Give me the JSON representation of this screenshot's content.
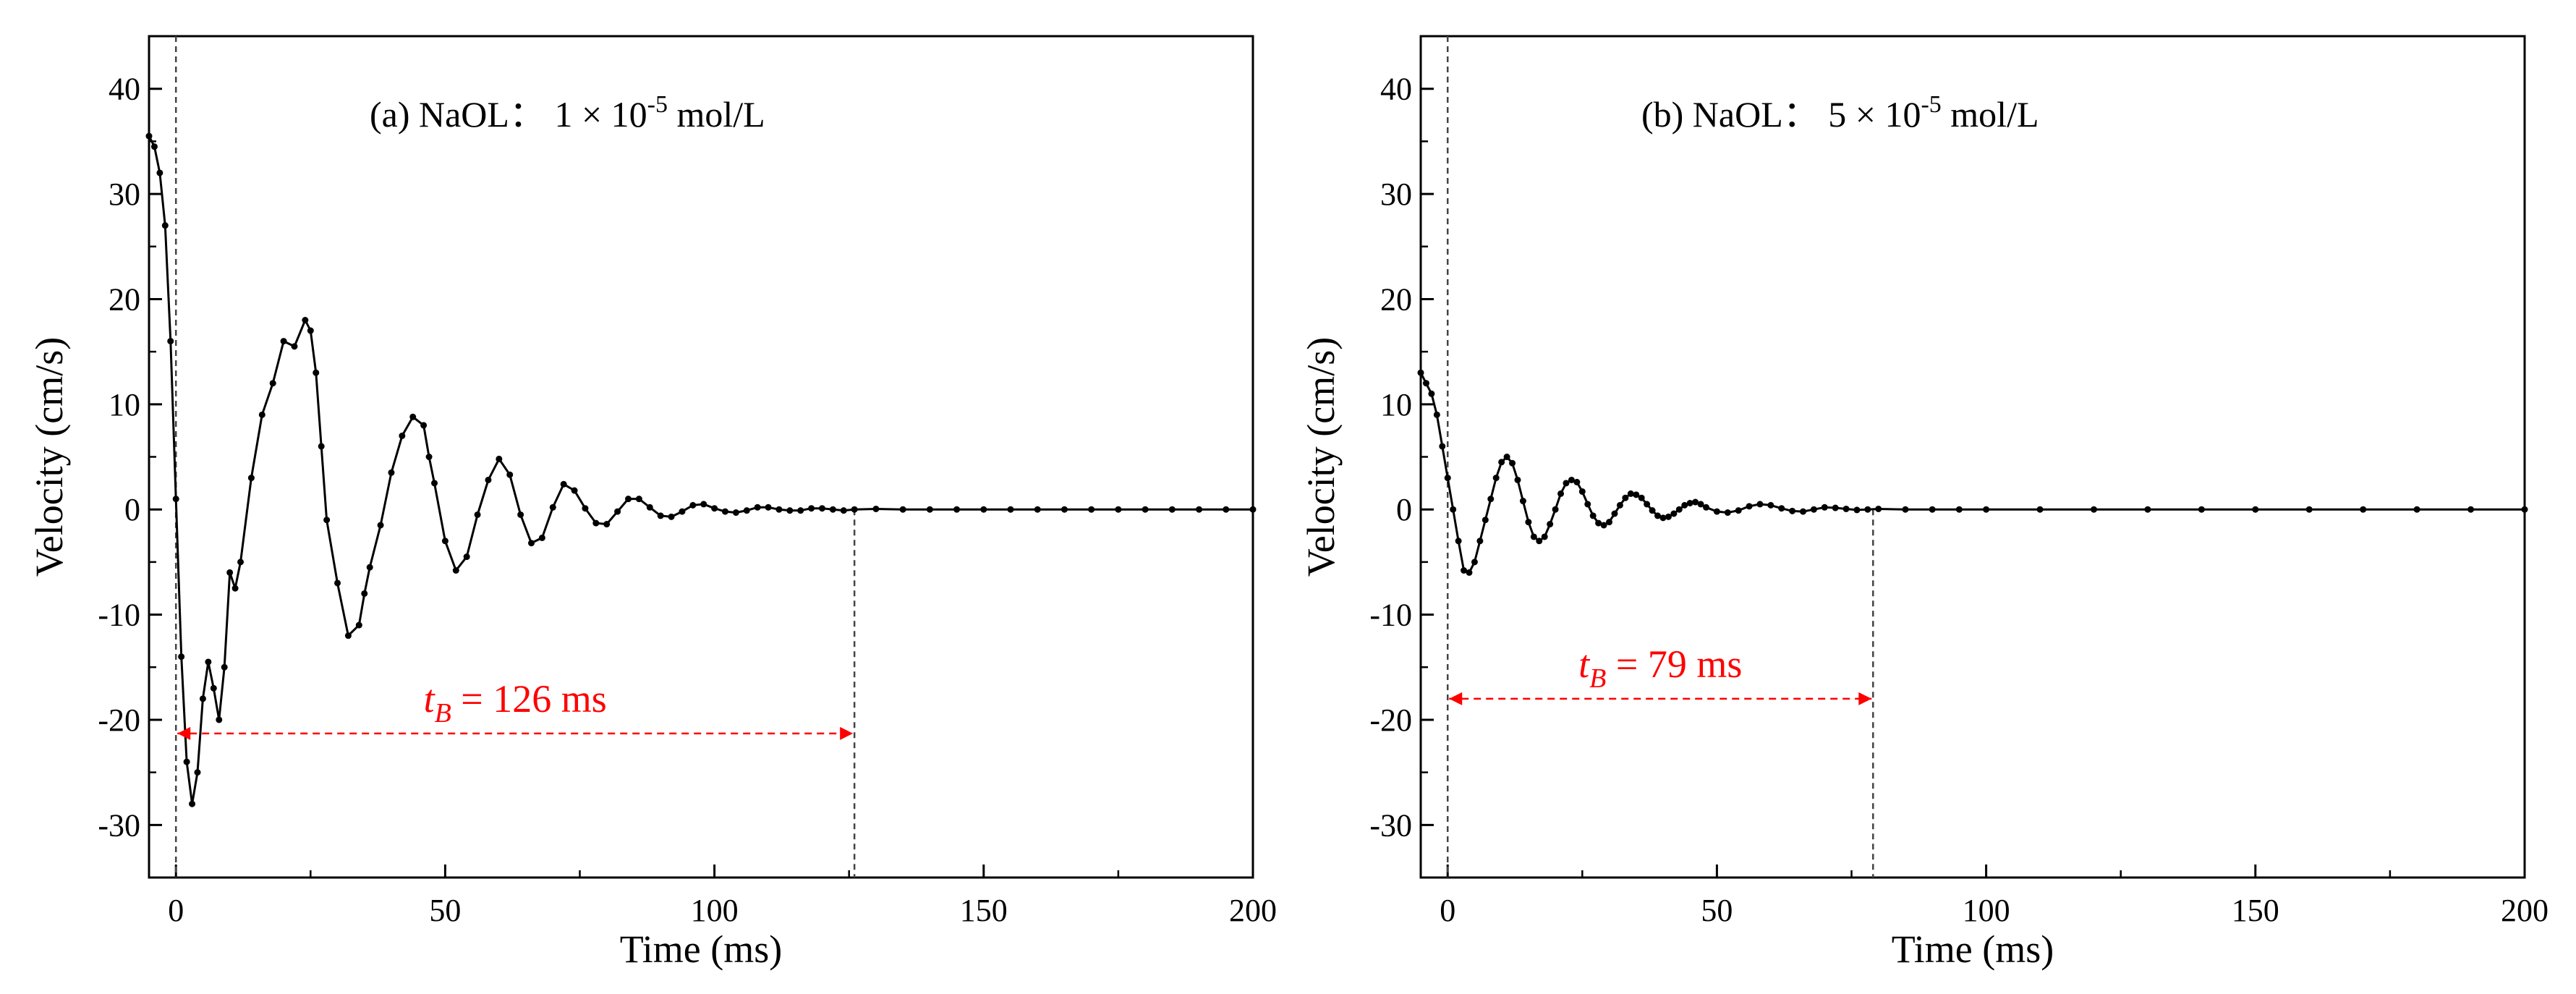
{
  "chart_data": [
    {
      "type": "line",
      "panel_label": "(a) NaOL： 1 × 10",
      "panel_exp": "-5",
      "panel_unit": " mol/L",
      "xlabel": "Time (ms)",
      "ylabel": "Velocity (cm/s)",
      "xlim": [
        -5,
        200
      ],
      "ylim": [
        -35,
        45
      ],
      "xticks": [
        0,
        50,
        100,
        150,
        200
      ],
      "xtick_labels": [
        "0",
        "50",
        "100",
        "150",
        "200"
      ],
      "yticks": [
        -30,
        -20,
        -10,
        0,
        10,
        20,
        30,
        40
      ],
      "ytick_labels": [
        "-30",
        "-20",
        "-10",
        "0",
        "10",
        "20",
        "30",
        "40"
      ],
      "grid": false,
      "annotation": {
        "prefix": "t",
        "subscript": "B",
        "suffix": " = 126 ms",
        "from": 0,
        "to": 126,
        "y": -21.3
      },
      "vlines": [
        0,
        126
      ],
      "series": [
        {
          "name": "velocity",
          "x": [
            -5,
            -4,
            -3,
            -2,
            -1,
            0,
            1,
            2,
            3,
            4,
            5,
            6,
            7,
            8,
            9,
            10,
            11,
            12,
            14,
            16,
            18,
            20,
            22,
            24,
            25,
            26,
            27,
            28,
            30,
            32,
            34,
            35,
            36,
            38,
            40,
            42,
            44,
            46,
            47,
            48,
            50,
            52,
            54,
            56,
            58,
            60,
            62,
            64,
            66,
            68,
            70,
            72,
            74,
            76,
            78,
            80,
            82,
            84,
            86,
            88,
            90,
            92,
            94,
            96,
            98,
            100,
            102,
            104,
            106,
            108,
            110,
            112,
            114,
            116,
            118,
            120,
            122,
            124,
            126,
            130,
            135,
            140,
            145,
            150,
            155,
            160,
            165,
            170,
            175,
            180,
            185,
            190,
            195,
            200
          ],
          "y": [
            35.5,
            34.5,
            32,
            27,
            16,
            1,
            -14,
            -24,
            -28,
            -25,
            -18,
            -14.5,
            -17,
            -20,
            -15,
            -6,
            -7.5,
            -5,
            3,
            9,
            12,
            16,
            15.5,
            18,
            17,
            13,
            6,
            -1,
            -7,
            -12,
            -11,
            -8,
            -5.5,
            -1.5,
            3.5,
            7,
            8.8,
            8,
            5,
            2.5,
            -3,
            -5.8,
            -4.5,
            -0.5,
            2.8,
            4.8,
            3.3,
            -0.5,
            -3.2,
            -2.7,
            0.2,
            2.4,
            1.8,
            0.1,
            -1.3,
            -1.4,
            -0.2,
            1,
            1,
            0.2,
            -0.6,
            -0.7,
            -0.2,
            0.4,
            0.5,
            0.1,
            -0.2,
            -0.3,
            -0.1,
            0.2,
            0.2,
            0,
            -0.1,
            -0.1,
            0.1,
            0.1,
            0,
            -0.1,
            0,
            0.05,
            0,
            0,
            0,
            0,
            0,
            0,
            0,
            0,
            0,
            0,
            0,
            0,
            0,
            0
          ]
        }
      ]
    },
    {
      "type": "line",
      "panel_label": "(b) NaOL： 5 × 10",
      "panel_exp": "-5",
      "panel_unit": " mol/L",
      "xlabel": "Time (ms)",
      "ylabel": "Velocity (cm/s)",
      "xlim": [
        -5,
        200
      ],
      "ylim": [
        -35,
        45
      ],
      "xticks": [
        0,
        50,
        100,
        150,
        200
      ],
      "xtick_labels": [
        "0",
        "50",
        "100",
        "150",
        "200"
      ],
      "yticks": [
        -30,
        -20,
        -10,
        0,
        10,
        20,
        30,
        40
      ],
      "ytick_labels": [
        "-30",
        "-20",
        "-10",
        "0",
        "10",
        "20",
        "30",
        "40"
      ],
      "grid": false,
      "annotation": {
        "prefix": "t",
        "subscript": "B",
        "suffix": " = 79 ms",
        "from": 0,
        "to": 79,
        "y": -18
      },
      "vlines": [
        0,
        79
      ],
      "series": [
        {
          "name": "velocity",
          "x": [
            -5,
            -4,
            -3,
            -2,
            -1,
            0,
            1,
            2,
            3,
            4,
            5,
            6,
            7,
            8,
            9,
            10,
            11,
            12,
            13,
            14,
            15,
            16,
            17,
            18,
            19,
            20,
            21,
            22,
            23,
            24,
            25,
            26,
            27,
            28,
            29,
            30,
            31,
            32,
            33,
            34,
            35,
            36,
            37,
            38,
            39,
            40,
            41,
            42,
            43,
            44,
            45,
            46,
            47,
            48,
            50,
            52,
            54,
            56,
            58,
            60,
            62,
            64,
            66,
            68,
            70,
            72,
            74,
            76,
            78,
            80,
            85,
            90,
            95,
            100,
            110,
            120,
            130,
            140,
            150,
            160,
            170,
            180,
            190,
            200
          ],
          "y": [
            13,
            12,
            11,
            9,
            6,
            3,
            0,
            -3,
            -5.8,
            -6,
            -5,
            -3,
            -1,
            1,
            3,
            4.5,
            5,
            4.4,
            2.8,
            0.8,
            -1.2,
            -2.6,
            -3,
            -2.6,
            -1.4,
            0,
            1.5,
            2.5,
            2.8,
            2.6,
            1.7,
            0.5,
            -0.6,
            -1.3,
            -1.5,
            -1.2,
            -0.4,
            0.4,
            1.1,
            1.5,
            1.4,
            1.1,
            0.5,
            -0.1,
            -0.6,
            -0.8,
            -0.7,
            -0.4,
            0,
            0.4,
            0.6,
            0.7,
            0.5,
            0.2,
            -0.2,
            -0.3,
            -0.1,
            0.3,
            0.5,
            0.4,
            0.1,
            -0.15,
            -0.2,
            0,
            0.2,
            0.15,
            0.05,
            -0.05,
            0,
            0.05,
            0,
            0,
            0,
            0,
            0,
            0,
            0,
            0,
            0,
            0,
            0,
            0,
            0,
            0
          ]
        }
      ]
    }
  ]
}
